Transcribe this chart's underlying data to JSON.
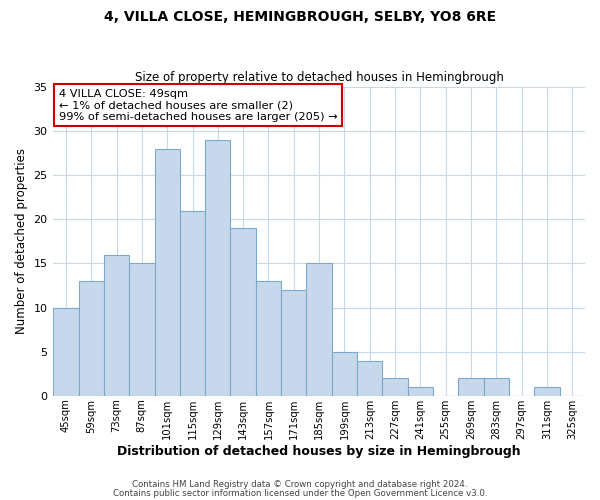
{
  "title": "4, VILLA CLOSE, HEMINGBROUGH, SELBY, YO8 6RE",
  "subtitle": "Size of property relative to detached houses in Hemingbrough",
  "xlabel": "Distribution of detached houses by size in Hemingbrough",
  "ylabel": "Number of detached properties",
  "bar_labels": [
    "45sqm",
    "59sqm",
    "73sqm",
    "87sqm",
    "101sqm",
    "115sqm",
    "129sqm",
    "143sqm",
    "157sqm",
    "171sqm",
    "185sqm",
    "199sqm",
    "213sqm",
    "227sqm",
    "241sqm",
    "255sqm",
    "269sqm",
    "283sqm",
    "297sqm",
    "311sqm",
    "325sqm"
  ],
  "bar_heights": [
    10,
    13,
    16,
    15,
    28,
    21,
    29,
    19,
    13,
    12,
    15,
    5,
    4,
    2,
    1,
    0,
    2,
    2,
    0,
    1,
    0
  ],
  "bar_color": "#c8d8ec",
  "bar_edge_color": "#7aaac8",
  "highlight_bar_index": 0,
  "highlight_edge_color": "#cc0000",
  "ylim": [
    0,
    35
  ],
  "yticks": [
    0,
    5,
    10,
    15,
    20,
    25,
    30,
    35
  ],
  "annotation_title": "4 VILLA CLOSE: 49sqm",
  "annotation_line1": "← 1% of detached houses are smaller (2)",
  "annotation_line2": "99% of semi-detached houses are larger (205) →",
  "annotation_box_edge": "#cc0000",
  "footer_line1": "Contains HM Land Registry data © Crown copyright and database right 2024.",
  "footer_line2": "Contains public sector information licensed under the Open Government Licence v3.0.",
  "background_color": "#ffffff",
  "grid_color": "#c8d8ec"
}
